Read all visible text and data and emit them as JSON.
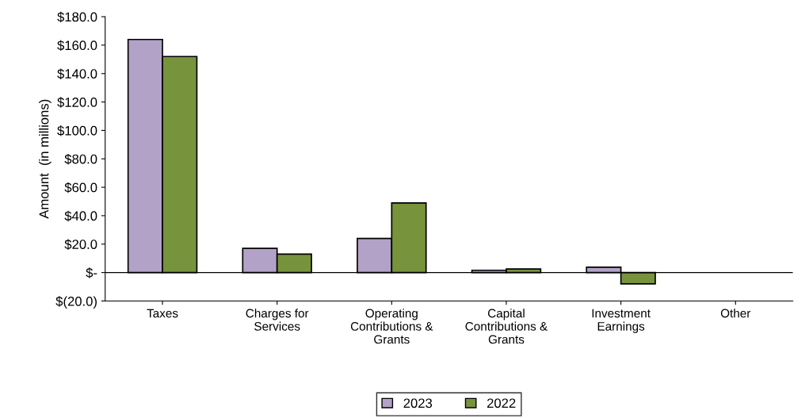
{
  "chart_data": {
    "type": "bar",
    "ylabel": "Amount  (in millions)",
    "categories": [
      "Taxes",
      "Charges for\nServices",
      "Operating\nContributions &\nGrants",
      "Capital\nContributions &\nGrants",
      "Investment\nEarnings",
      "Other"
    ],
    "series": [
      {
        "name": "2023",
        "color": "#b3a2c7",
        "values": [
          164,
          17,
          24,
          1.6,
          3.8,
          null
        ]
      },
      {
        "name": "2022",
        "color": "#77933c",
        "values": [
          152,
          13,
          49,
          2.5,
          -8,
          null
        ]
      }
    ],
    "ylim": [
      -20,
      180
    ],
    "yticks": [
      {
        "value": -20,
        "label": "$(20.0)"
      },
      {
        "value": 0,
        "label": "$-"
      },
      {
        "value": 20,
        "label": "$20.0"
      },
      {
        "value": 40,
        "label": "$40.0"
      },
      {
        "value": 60,
        "label": "$60.0"
      },
      {
        "value": 80,
        "label": "$80.0"
      },
      {
        "value": 100,
        "label": "$100.0"
      },
      {
        "value": 120,
        "label": "$120.0"
      },
      {
        "value": 140,
        "label": "$140.0"
      },
      {
        "value": 160,
        "label": "$160.0"
      },
      {
        "value": 180,
        "label": "$180.0"
      }
    ],
    "ref_lines": [
      {
        "axis": "y",
        "value": 0,
        "color": "#000000"
      }
    ],
    "grid": false,
    "legend": "bottom"
  }
}
